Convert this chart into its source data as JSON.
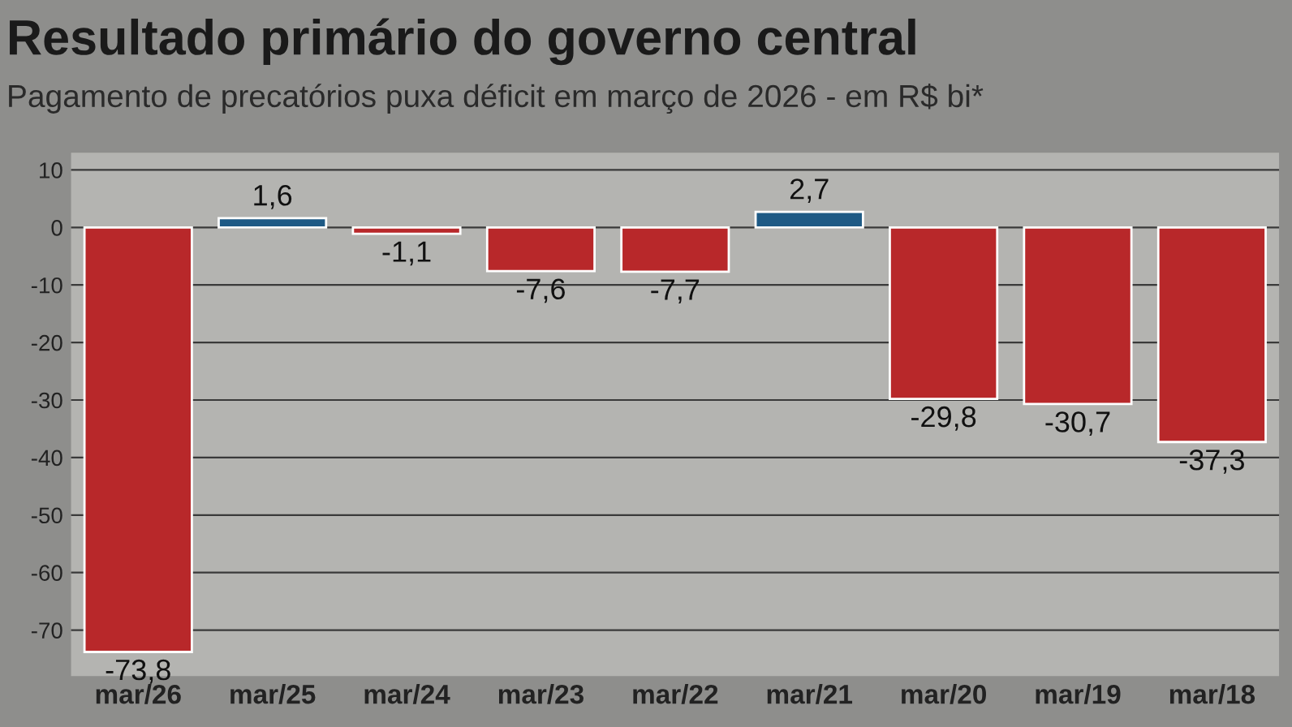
{
  "chart_data": {
    "type": "bar",
    "title": "Resultado primário do governo central",
    "subtitle": "Pagamento de precatórios puxa déficit em março de 2026 - em R$ bi*",
    "categories": [
      "mar/26",
      "mar/25",
      "mar/24",
      "mar/23",
      "mar/22",
      "mar/21",
      "mar/20",
      "mar/19",
      "mar/18"
    ],
    "values": [
      -73.8,
      1.6,
      -1.1,
      -7.6,
      -7.7,
      2.7,
      -29.8,
      -30.7,
      -37.3
    ],
    "colors": [
      "#b8282a",
      "#1e5a85",
      "#b8282a",
      "#b8282a",
      "#b8282a",
      "#1e5a85",
      "#b8282a",
      "#b8282a",
      "#b8282a"
    ],
    "value_labels": [
      "-73,8",
      "1,6",
      "-1,1",
      "-7,6",
      "-7,7",
      "2,7",
      "-29,8",
      "-30,7",
      "-37,3"
    ],
    "ylim": [
      -78,
      13
    ],
    "yticks": [
      10,
      0,
      -10,
      -20,
      -30,
      -40,
      -50,
      -60,
      -70
    ],
    "grid": "y",
    "legend": false
  }
}
